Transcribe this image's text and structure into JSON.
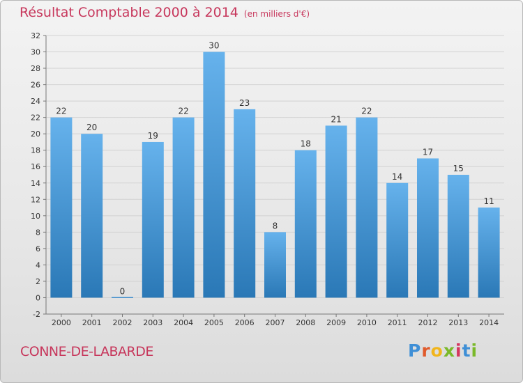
{
  "title": "Résultat Comptable 2000 à 2014",
  "title_unit": "(en milliers d'€)",
  "commune": "CONNE-DE-LABARDE",
  "brand": {
    "letters": [
      "P",
      "r",
      "o",
      "x",
      "i",
      "t",
      "i"
    ],
    "colors": [
      "#3f8fd6",
      "#e05a2b",
      "#f1b51c",
      "#7ab929",
      "#d6365f",
      "#3f8fd6",
      "#7ab929"
    ]
  },
  "colors": {
    "title": "#c7375c",
    "bar_light": "#66b2ec",
    "bar_dark": "#2a78b6",
    "axis_text": "#333333",
    "grid": "#d2d2d2"
  },
  "chart_data": {
    "type": "bar",
    "title": "Résultat Comptable 2000 à 2014",
    "xlabel": "",
    "ylabel": "",
    "categories": [
      "2000",
      "2001",
      "2002",
      "2003",
      "2004",
      "2005",
      "2006",
      "2007",
      "2008",
      "2009",
      "2010",
      "2011",
      "2012",
      "2013",
      "2014"
    ],
    "values": [
      22,
      20,
      0,
      19,
      22,
      30,
      23,
      8,
      18,
      21,
      22,
      14,
      17,
      15,
      11
    ],
    "ylim": [
      -2,
      32
    ],
    "yticks": [
      -2,
      0,
      2,
      4,
      6,
      8,
      10,
      12,
      14,
      16,
      18,
      20,
      22,
      24,
      26,
      28,
      30,
      32
    ],
    "grid": true,
    "legend": "none"
  }
}
